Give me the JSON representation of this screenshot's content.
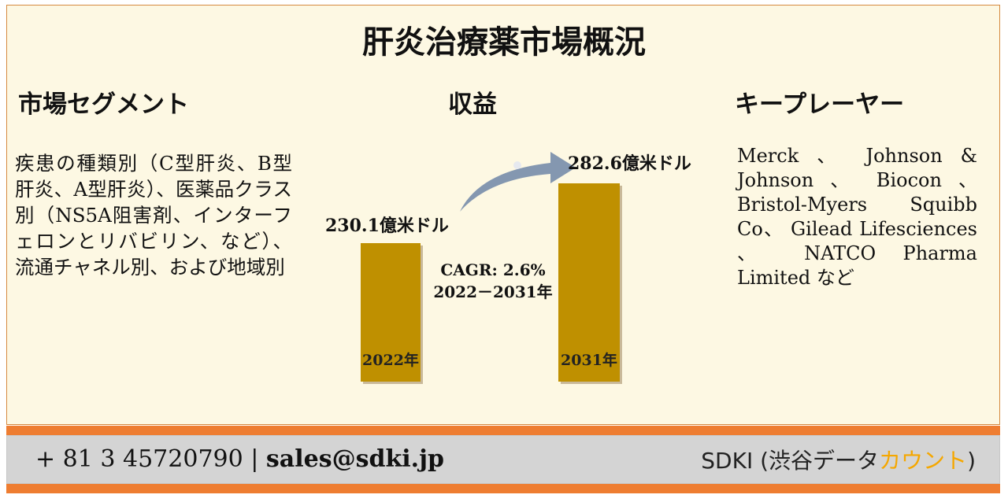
{
  "title": "肝炎治療薬市場概況",
  "sections": {
    "segments_heading": "市場セグメント",
    "revenue_heading": "収益",
    "key_players_heading": "キープレーヤー"
  },
  "segments_text": "疾患の種類別（C型肝炎、B型肝炎、A型肝炎）、医薬品クラス別（NS5A阻害剤、インターフェロンとリバビリン、など）、流通チャネル別、および地域別",
  "key_players_text": "Merck 、 Johnson & Johnson 、 Biocon 、 Bristol-Myers Squibb Co、 Gilead Lifesciences 、 NATCO Pharma Limited など",
  "chart_data": {
    "type": "bar",
    "categories": [
      "2022年",
      "2031年"
    ],
    "values": [
      230.1,
      282.6
    ],
    "value_labels": [
      "230.1億米ドル",
      "282.6億米ドル"
    ],
    "cagr_line1": "CAGR: 2.6%",
    "cagr_line2": "2022－2031年",
    "colors": {
      "bar": "#bf9000",
      "arrow": "#8497b0"
    }
  },
  "footer": {
    "phone": "+ 81 3 45720790",
    "separator": "|",
    "email": "sales@sdki.jp",
    "brand_main": "SDKI (渋谷データ",
    "brand_accent": "カウント",
    "brand_close": ")"
  },
  "colors": {
    "panel_bg": "#fdf8e3",
    "accent_orange": "#ee7d31",
    "footer_bg": "#d4d4d4",
    "brand_accent": "#f5a700"
  }
}
